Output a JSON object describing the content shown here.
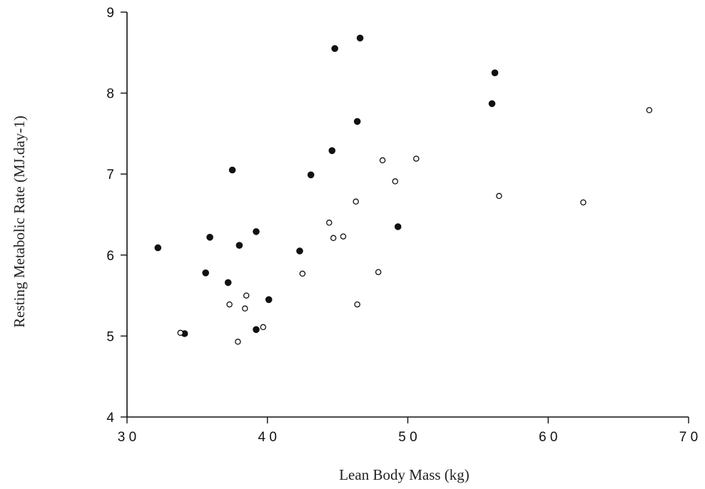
{
  "chart_data": {
    "type": "scatter",
    "title": "",
    "xlabel": "Lean Body Mass (kg)",
    "ylabel": "Resting Metabolic Rate (MJ.day-1)",
    "xlim": [
      30,
      70
    ],
    "ylim": [
      4,
      9
    ],
    "xticks": [
      30,
      40,
      50,
      60,
      70
    ],
    "xtick_labels": [
      "3 0",
      "4 0",
      "5 0",
      "6 0",
      "7 0"
    ],
    "yticks": [
      4,
      5,
      6,
      7,
      8,
      9
    ],
    "ytick_labels": [
      "4",
      "5",
      "6",
      "7",
      "8",
      "9"
    ],
    "grid": false,
    "series": [
      {
        "marker": "filled-circle",
        "color": "#111111",
        "points": [
          [
            32.2,
            6.09
          ],
          [
            34.1,
            5.03
          ],
          [
            35.6,
            5.78
          ],
          [
            35.9,
            6.22
          ],
          [
            37.2,
            5.66
          ],
          [
            37.5,
            7.05
          ],
          [
            38.0,
            6.12
          ],
          [
            39.2,
            6.29
          ],
          [
            39.2,
            5.08
          ],
          [
            40.1,
            5.45
          ],
          [
            42.3,
            6.05
          ],
          [
            43.1,
            6.99
          ],
          [
            44.6,
            7.29
          ],
          [
            44.8,
            8.55
          ],
          [
            46.4,
            7.65
          ],
          [
            46.6,
            8.68
          ],
          [
            49.3,
            6.35
          ],
          [
            56.0,
            7.87
          ],
          [
            56.2,
            8.25
          ]
        ]
      },
      {
        "marker": "open-circle",
        "color": "#111111",
        "points": [
          [
            33.8,
            5.04
          ],
          [
            37.3,
            5.39
          ],
          [
            37.9,
            4.93
          ],
          [
            38.4,
            5.34
          ],
          [
            38.5,
            5.5
          ],
          [
            39.7,
            5.11
          ],
          [
            42.5,
            5.77
          ],
          [
            44.4,
            6.4
          ],
          [
            44.7,
            6.21
          ],
          [
            45.4,
            6.23
          ],
          [
            46.3,
            6.66
          ],
          [
            46.4,
            5.39
          ],
          [
            47.9,
            5.79
          ],
          [
            48.2,
            7.17
          ],
          [
            49.1,
            6.91
          ],
          [
            50.6,
            7.19
          ],
          [
            56.5,
            6.73
          ],
          [
            62.5,
            6.65
          ],
          [
            67.2,
            7.79
          ]
        ]
      }
    ]
  }
}
